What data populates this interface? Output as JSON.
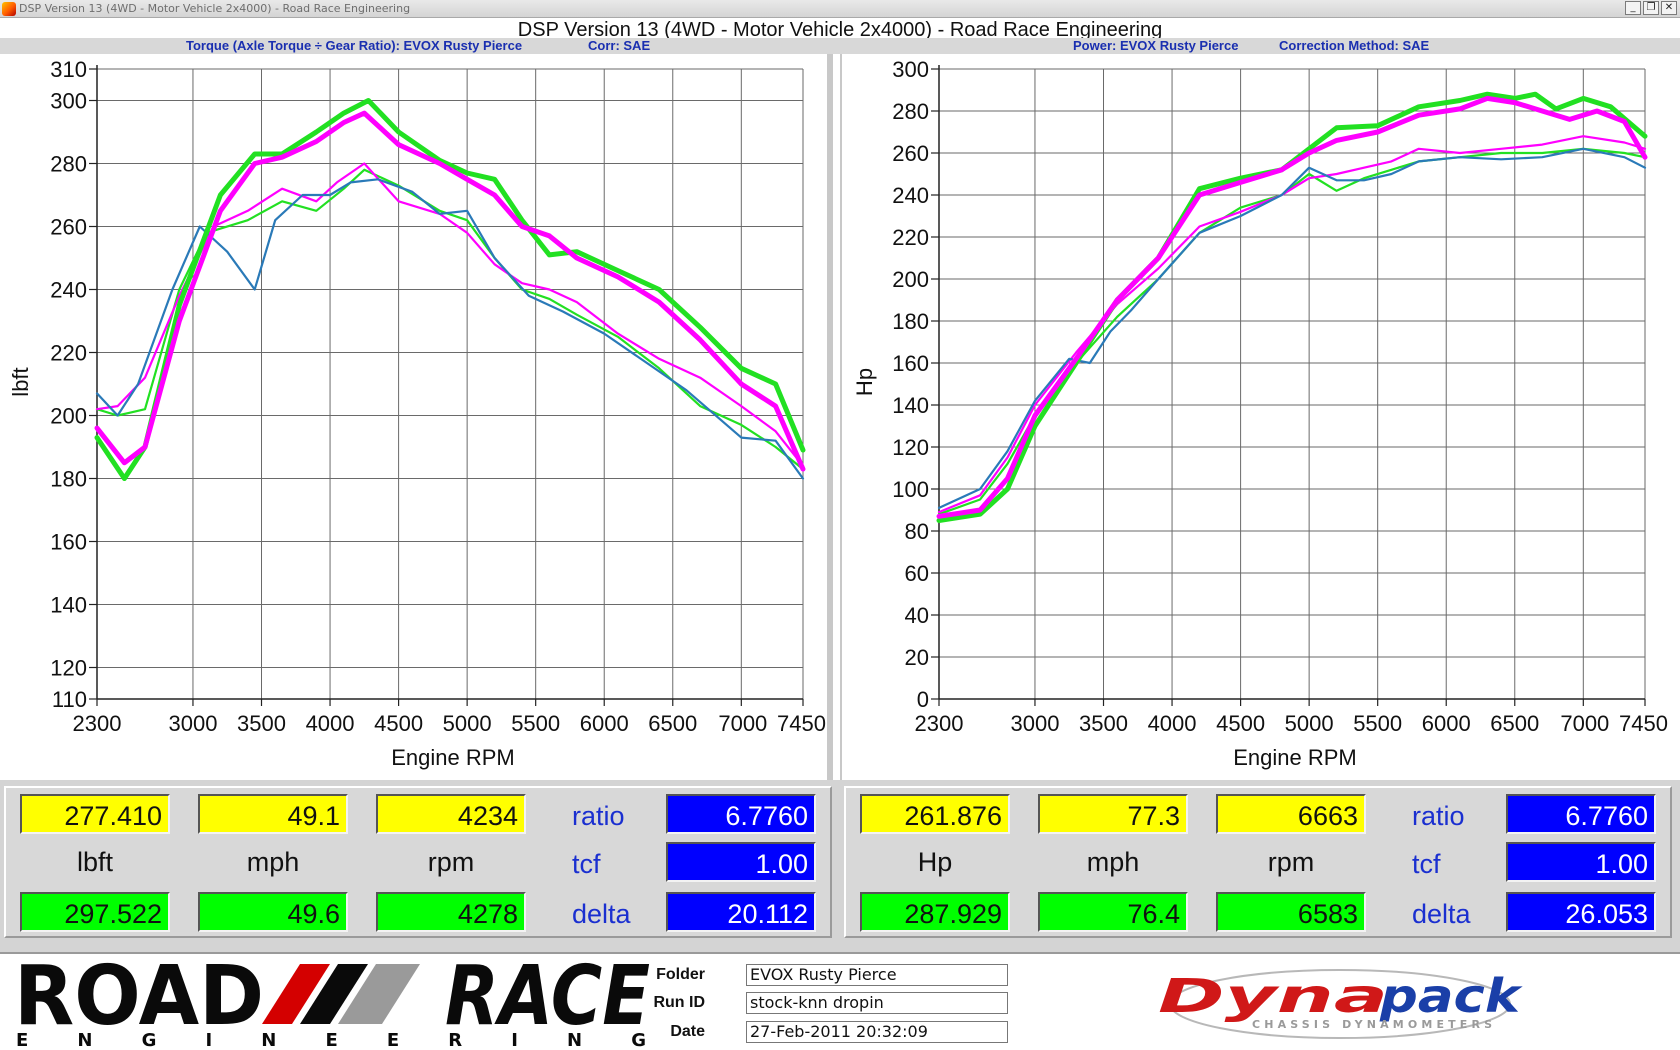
{
  "window": {
    "title": "DSP Version 13 (4WD - Motor Vehicle 2x4000) - Road Race Engineering",
    "controls": [
      "_",
      "❐",
      "✕"
    ]
  },
  "header": {
    "title": "DSP Version 13 (4WD - Motor Vehicle 2x4000) - Road Race Engineering",
    "left_sub": "Torque (Axle Torque ÷ Gear Ratio): EVOX Rusty Pierce",
    "left_corr": "Corr: SAE",
    "right_sub": "Power: EVOX Rusty Pierce",
    "right_corr": "Correction Method: SAE"
  },
  "colors": {
    "bright_green": "#22e022",
    "magenta": "#ff00ff",
    "steel_blue": "#2a7ab8",
    "yellow_field": "#ffff00",
    "green_field": "#00ff00",
    "blue_field": "#0000ff",
    "subheader_text": "#1a2fb0"
  },
  "chart_data": [
    {
      "type": "line",
      "xlabel": "Engine RPM",
      "ylabel": "lbft",
      "xlim": [
        2300,
        7450
      ],
      "ylim": [
        110,
        310
      ],
      "x_ticks": [
        2300,
        3000,
        3500,
        4000,
        4500,
        5000,
        5500,
        6000,
        6500,
        7000,
        7450
      ],
      "y_ticks": [
        110,
        120,
        140,
        160,
        180,
        200,
        220,
        240,
        260,
        280,
        300,
        310
      ],
      "grid": true,
      "series": [
        {
          "color": "bright_green",
          "style": "thick",
          "x": [
            2300,
            2500,
            2650,
            2900,
            3200,
            3450,
            3650,
            3900,
            4100,
            4280,
            4500,
            4800,
            5000,
            5200,
            5400,
            5600,
            5800,
            6100,
            6400,
            6700,
            7000,
            7250,
            7450
          ],
          "y": [
            193,
            180,
            190,
            235,
            270,
            283,
            283,
            290,
            296,
            300,
            290,
            281,
            277,
            275,
            262,
            251,
            252,
            246,
            240,
            228,
            215,
            210,
            189
          ]
        },
        {
          "color": "magenta",
          "style": "thick",
          "x": [
            2300,
            2500,
            2650,
            2900,
            3200,
            3450,
            3650,
            3900,
            4100,
            4250,
            4500,
            4800,
            5000,
            5200,
            5400,
            5600,
            5800,
            6100,
            6400,
            6700,
            7000,
            7250,
            7450
          ],
          "y": [
            196,
            185,
            190,
            230,
            265,
            280,
            282,
            287,
            293,
            296,
            286,
            280,
            275,
            270,
            260,
            257,
            250,
            244,
            236,
            224,
            210,
            203,
            183
          ]
        },
        {
          "color": "bright_green",
          "style": "thin",
          "x": [
            2300,
            2450,
            2650,
            2900,
            3100,
            3400,
            3650,
            3900,
            4100,
            4250,
            4500,
            4800,
            5000,
            5200,
            5400,
            5600,
            5800,
            6100,
            6400,
            6700,
            7000,
            7250,
            7450
          ],
          "y": [
            202,
            200,
            202,
            240,
            258,
            262,
            268,
            265,
            272,
            278,
            273,
            265,
            262,
            250,
            240,
            237,
            232,
            225,
            215,
            203,
            197,
            190,
            183
          ]
        },
        {
          "color": "magenta",
          "style": "thin",
          "x": [
            2300,
            2450,
            2650,
            2900,
            3150,
            3400,
            3650,
            3900,
            4050,
            4250,
            4500,
            4800,
            5000,
            5200,
            5400,
            5600,
            5800,
            6100,
            6400,
            6700,
            7000,
            7250,
            7450
          ],
          "y": [
            202,
            203,
            212,
            238,
            260,
            265,
            272,
            268,
            274,
            280,
            268,
            264,
            258,
            248,
            242,
            240,
            236,
            226,
            218,
            212,
            203,
            195,
            184
          ]
        },
        {
          "color": "steel_blue",
          "style": "thin",
          "x": [
            2300,
            2450,
            2600,
            2850,
            3050,
            3250,
            3450,
            3600,
            3800,
            4000,
            4150,
            4350,
            4600,
            4800,
            5000,
            5200,
            5450,
            5700,
            6000,
            6300,
            6600,
            7000,
            7250,
            7450
          ],
          "y": [
            207,
            200,
            210,
            240,
            260,
            252,
            240,
            262,
            270,
            270,
            274,
            275,
            271,
            264,
            265,
            250,
            238,
            233,
            226,
            217,
            208,
            193,
            192,
            180
          ]
        }
      ]
    },
    {
      "type": "line",
      "xlabel": "Engine RPM",
      "ylabel": "Hp",
      "xlim": [
        2300,
        7450
      ],
      "ylim": [
        0,
        300
      ],
      "x_ticks": [
        2300,
        3000,
        3500,
        4000,
        4500,
        5000,
        5500,
        6000,
        6500,
        7000,
        7450
      ],
      "y_ticks": [
        0,
        20,
        40,
        60,
        80,
        100,
        120,
        140,
        160,
        180,
        200,
        220,
        240,
        260,
        280,
        300
      ],
      "grid": true,
      "series": [
        {
          "color": "bright_green",
          "style": "thick",
          "x": [
            2300,
            2600,
            2800,
            3000,
            3300,
            3600,
            3900,
            4200,
            4500,
            4800,
            5000,
            5200,
            5500,
            5800,
            6100,
            6300,
            6500,
            6650,
            6800,
            7000,
            7200,
            7450
          ],
          "y": [
            85,
            88,
            100,
            130,
            160,
            190,
            210,
            243,
            248,
            252,
            262,
            272,
            273,
            282,
            285,
            288,
            286,
            288,
            281,
            286,
            282,
            268
          ]
        },
        {
          "color": "magenta",
          "style": "thick",
          "x": [
            2300,
            2600,
            2800,
            3000,
            3300,
            3600,
            3900,
            4200,
            4500,
            4800,
            5000,
            5200,
            5500,
            5800,
            6100,
            6300,
            6500,
            6700,
            6900,
            7100,
            7300,
            7450
          ],
          "y": [
            87,
            90,
            105,
            135,
            162,
            190,
            210,
            240,
            246,
            252,
            260,
            266,
            270,
            278,
            281,
            286,
            284,
            280,
            276,
            280,
            275,
            258
          ]
        },
        {
          "color": "bright_green",
          "style": "thin",
          "x": [
            2300,
            2600,
            2800,
            3000,
            3300,
            3600,
            3900,
            4200,
            4500,
            4800,
            5000,
            5200,
            5400,
            5600,
            5800,
            6100,
            6400,
            6700,
            7000,
            7300,
            7450
          ],
          "y": [
            88,
            95,
            112,
            135,
            160,
            182,
            200,
            222,
            234,
            240,
            250,
            242,
            248,
            252,
            256,
            258,
            260,
            260,
            262,
            260,
            258
          ]
        },
        {
          "color": "magenta",
          "style": "thin",
          "x": [
            2300,
            2600,
            2800,
            3000,
            3300,
            3600,
            3900,
            4200,
            4500,
            4800,
            5000,
            5200,
            5400,
            5600,
            5800,
            6100,
            6400,
            6700,
            7000,
            7300,
            7450
          ],
          "y": [
            89,
            97,
            115,
            140,
            165,
            188,
            205,
            225,
            232,
            240,
            248,
            250,
            253,
            256,
            262,
            260,
            262,
            264,
            268,
            265,
            262
          ]
        },
        {
          "color": "steel_blue",
          "style": "thin",
          "x": [
            2300,
            2600,
            2800,
            3000,
            3250,
            3400,
            3550,
            3700,
            3900,
            4200,
            4500,
            4800,
            5000,
            5200,
            5400,
            5600,
            5800,
            6100,
            6400,
            6700,
            7000,
            7300,
            7450
          ],
          "y": [
            91,
            100,
            118,
            142,
            162,
            160,
            175,
            185,
            200,
            222,
            230,
            240,
            253,
            247,
            247,
            250,
            256,
            258,
            257,
            258,
            262,
            258,
            253
          ]
        }
      ]
    }
  ],
  "readouts": {
    "left": {
      "cursor": {
        "value": "277.410",
        "speed": "49.1",
        "rpm": "4234"
      },
      "peak": {
        "value": "297.522",
        "speed": "49.6",
        "rpm": "4278"
      },
      "units": {
        "value": "lbft",
        "speed": "mph",
        "rpm": "rpm"
      },
      "params": [
        {
          "label": "ratio",
          "value": "6.7760"
        },
        {
          "label": "tcf",
          "value": "1.00"
        },
        {
          "label": "delta",
          "value": "20.112"
        }
      ]
    },
    "right": {
      "cursor": {
        "value": "261.876",
        "speed": "77.3",
        "rpm": "6663"
      },
      "peak": {
        "value": "287.929",
        "speed": "76.4",
        "rpm": "6583"
      },
      "units": {
        "value": "Hp",
        "speed": "mph",
        "rpm": "rpm"
      },
      "params": [
        {
          "label": "ratio",
          "value": "6.7760"
        },
        {
          "label": "tcf",
          "value": "1.00"
        },
        {
          "label": "delta",
          "value": "26.053"
        }
      ]
    }
  },
  "footer": {
    "logo_left": "ROAD RACE ENGINEERING",
    "fields": [
      {
        "label": "Folder",
        "value": "EVOX Rusty Pierce"
      },
      {
        "label": "Run ID",
        "value": "stock-knn dropin"
      },
      {
        "label": "Date",
        "value": "27-Feb-2011 20:32:09"
      }
    ],
    "logo_right": "Dynapack",
    "logo_right_sub": "CHASSIS DYNAMOMETERS"
  }
}
